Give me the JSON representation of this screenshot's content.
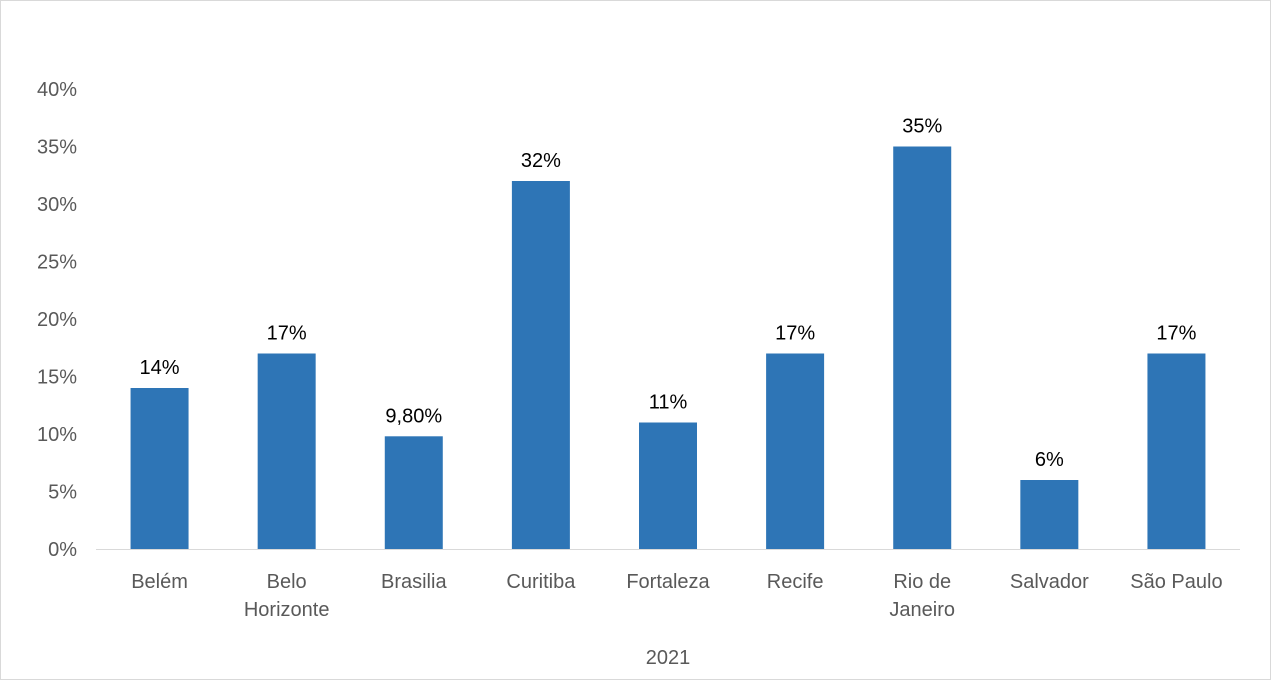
{
  "chart_data": {
    "type": "bar",
    "categories": [
      [
        "Belém"
      ],
      [
        "Belo",
        "Horizonte"
      ],
      [
        "Brasilia"
      ],
      [
        "Curitiba"
      ],
      [
        "Fortaleza"
      ],
      [
        "Recife"
      ],
      [
        "Rio de",
        "Janeiro"
      ],
      [
        "Salvador"
      ],
      [
        "São Paulo"
      ]
    ],
    "values": [
      14,
      17,
      9.8,
      32,
      11,
      17,
      35,
      6,
      17
    ],
    "data_labels": [
      "14%",
      "17%",
      "9,80%",
      "32%",
      "11%",
      "17%",
      "35%",
      "6%",
      "17%"
    ],
    "y_ticks": [
      "0%",
      "5%",
      "10%",
      "15%",
      "20%",
      "25%",
      "30%",
      "35%",
      "40%"
    ],
    "ylim": [
      0,
      40
    ],
    "y_unit": "%",
    "xlabel": "2021",
    "ylabel": "",
    "title": "",
    "grid": false,
    "legend": "none",
    "bar_color": "#2e75b6",
    "axis_color": "#d9d9d9"
  }
}
